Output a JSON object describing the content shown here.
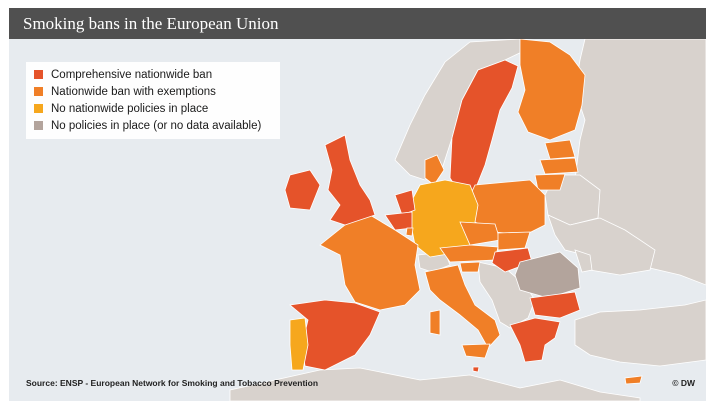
{
  "title": "Smoking bans in the European Union",
  "colors": {
    "sea": "#e7ebef",
    "land_non_eu": "#d8d2cd",
    "border": "#ffffff",
    "comprehensive": "#e5532a",
    "exemptions": "#f07f27",
    "no_nationwide": "#f6a71d",
    "no_policies": "#b3a49c"
  },
  "legend": [
    {
      "label": "Comprehensive nationwide ban",
      "category": "comprehensive"
    },
    {
      "label": "Nationwide ban with exemptions",
      "category": "exemptions"
    },
    {
      "label": "No nationwide policies in place",
      "category": "no_nationwide"
    },
    {
      "label": "No policies in place (or no data available)",
      "category": "no_policies"
    }
  ],
  "countries": [
    {
      "name": "Ireland",
      "category": "comprehensive"
    },
    {
      "name": "United Kingdom",
      "category": "comprehensive"
    },
    {
      "name": "Netherlands",
      "category": "comprehensive"
    },
    {
      "name": "Belgium",
      "category": "comprehensive"
    },
    {
      "name": "Spain",
      "category": "comprehensive"
    },
    {
      "name": "Sweden",
      "category": "comprehensive"
    },
    {
      "name": "Hungary",
      "category": "comprehensive"
    },
    {
      "name": "Bulgaria",
      "category": "comprehensive"
    },
    {
      "name": "Greece",
      "category": "comprehensive"
    },
    {
      "name": "Malta",
      "category": "comprehensive"
    },
    {
      "name": "Finland",
      "category": "exemptions"
    },
    {
      "name": "Estonia",
      "category": "exemptions"
    },
    {
      "name": "Latvia",
      "category": "exemptions"
    },
    {
      "name": "Lithuania",
      "category": "exemptions"
    },
    {
      "name": "Poland",
      "category": "exemptions"
    },
    {
      "name": "Denmark",
      "category": "exemptions"
    },
    {
      "name": "France",
      "category": "exemptions"
    },
    {
      "name": "Italy",
      "category": "exemptions"
    },
    {
      "name": "Czech Republic",
      "category": "exemptions"
    },
    {
      "name": "Slovakia",
      "category": "exemptions"
    },
    {
      "name": "Austria",
      "category": "exemptions"
    },
    {
      "name": "Slovenia",
      "category": "exemptions"
    },
    {
      "name": "Luxembourg",
      "category": "exemptions"
    },
    {
      "name": "Cyprus",
      "category": "exemptions"
    },
    {
      "name": "Germany",
      "category": "no_nationwide"
    },
    {
      "name": "Portugal",
      "category": "no_nationwide"
    },
    {
      "name": "Romania",
      "category": "no_policies"
    }
  ],
  "source": "Source: ENSP - European Network for Smoking and Tobacco Prevention",
  "credit": "© DW"
}
